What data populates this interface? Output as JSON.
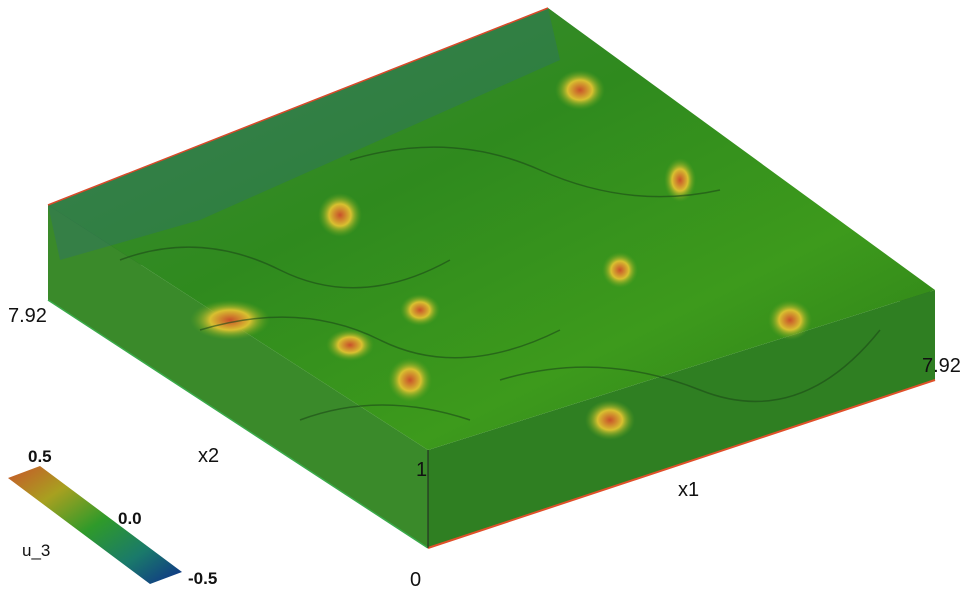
{
  "axes": {
    "x2_end": "7.92",
    "x2_label": "x2",
    "x1_end": "7.92",
    "x1_label": "x1",
    "z_top": "1",
    "origin": "0"
  },
  "colorbar": {
    "max": "0.5",
    "mid": "0.0",
    "min": "-0.5",
    "label": "u_3"
  }
}
